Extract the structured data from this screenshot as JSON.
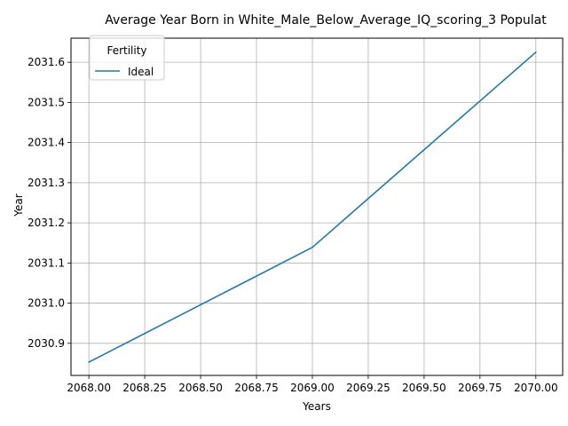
{
  "chart_data": {
    "type": "line",
    "title": "Average Year Born in White_Male_Below_Average_IQ_scoring_3 Populat",
    "xlabel": "Years",
    "ylabel": "Year",
    "xlim": [
      2067.92,
      2070.12
    ],
    "ylim": [
      2030.82,
      2031.66
    ],
    "xticks": [
      "2068.00",
      "2068.25",
      "2068.50",
      "2068.75",
      "2069.00",
      "2069.25",
      "2069.50",
      "2069.75",
      "2070.00"
    ],
    "yticks": [
      "2030.9",
      "2031.0",
      "2031.1",
      "2031.2",
      "2031.3",
      "2031.4",
      "2031.5",
      "2031.6"
    ],
    "grid": true,
    "legend": {
      "title": "Fertility",
      "placement": "top-left"
    },
    "series": [
      {
        "name": "Ideal",
        "color": "#1f77b4",
        "x": [
          2068,
          2069,
          2070
        ],
        "values": [
          2030.853,
          2031.139,
          2031.625
        ]
      }
    ]
  }
}
